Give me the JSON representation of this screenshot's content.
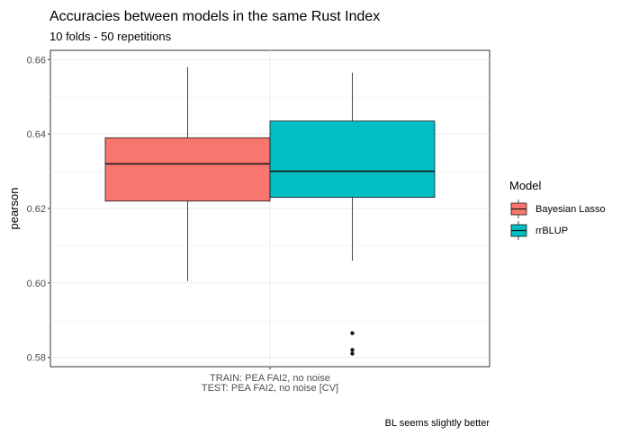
{
  "chart_data": {
    "type": "boxplot",
    "title": "Accuracies between models in the same Rust Index",
    "subtitle": "10 folds - 50 repetitions",
    "caption": "BL seems slightly better",
    "xlabel": "",
    "ylabel": "pearson",
    "ylim": [
      0.5775,
      0.6625
    ],
    "yticks": [
      0.58,
      0.6,
      0.62,
      0.64,
      0.66
    ],
    "ytick_labels": [
      "0.58",
      "0.60",
      "0.62",
      "0.64",
      "0.66"
    ],
    "categories": [
      "TRAIN: PEA FAI2, no noise\nTEST: PEA FAI2, no noise [CV]"
    ],
    "category_lines": [
      [
        "TRAIN: PEA FAI2, no noise",
        "TEST: PEA FAI2, no noise [CV]"
      ]
    ],
    "grid": true,
    "legend": {
      "title": "Model",
      "position": "right"
    },
    "series": [
      {
        "name": "Bayesian Lasso",
        "color": "#F8766D",
        "min": 0.6005,
        "q1": 0.622,
        "median": 0.632,
        "q3": 0.639,
        "max": 0.658,
        "outliers": []
      },
      {
        "name": "rrBLUP",
        "color": "#00BFC4",
        "min": 0.606,
        "q1": 0.623,
        "median": 0.63,
        "q3": 0.6435,
        "max": 0.6565,
        "outliers": [
          0.5865,
          0.582,
          0.581
        ]
      }
    ]
  }
}
